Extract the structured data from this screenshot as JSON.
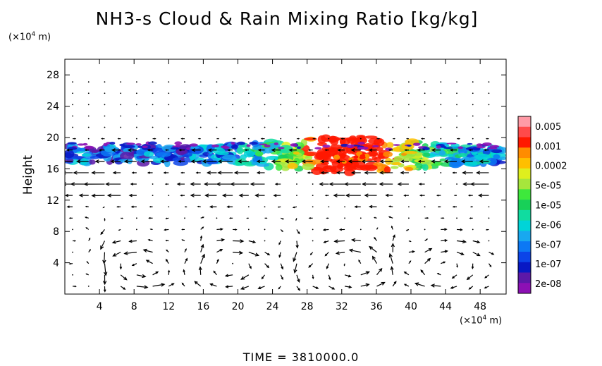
{
  "chart_data": {
    "type": "heatmap",
    "title": "NH3-s Cloud & Rain Mixing Ratio [kg/kg]",
    "ylabel": "Height",
    "y_unit": {
      "prefix": "(×10",
      "exp": "4",
      "suffix": " m)"
    },
    "x_unit": {
      "prefix": "(×10",
      "exp": "4",
      "suffix": " m)"
    },
    "xlim": [
      0,
      51
    ],
    "ylim": [
      0,
      30
    ],
    "x_ticks": [
      "4",
      "8",
      "12",
      "16",
      "20",
      "24",
      "28",
      "32",
      "36",
      "40",
      "44",
      "48"
    ],
    "y_ticks": [
      "4",
      "8",
      "12",
      "16",
      "20",
      "24",
      "28"
    ],
    "colorbar": {
      "labels": [
        "0.005",
        "0.001",
        "0.0002",
        "5e-05",
        "1e-05",
        "2e-06",
        "5e-07",
        "1e-07",
        "2e-08"
      ],
      "colors": [
        "#ff9aa6",
        "#ff4a4a",
        "#ff1800",
        "#ff8c00",
        "#ffbf00",
        "#dfef1e",
        "#a6e63c",
        "#3ee83c",
        "#18d058",
        "#10dca0",
        "#00d4d8",
        "#18a8f0",
        "#0c78f4",
        "#0c44e8",
        "#0818c4",
        "#5c18a8",
        "#8c10b4"
      ]
    },
    "cloud_layer": {
      "x_range": [
        0,
        51
      ],
      "y_range": [
        16,
        19.5
      ]
    },
    "grid": false,
    "vector_field": true
  },
  "footer": {
    "time_label": "TIME = 3810000.0"
  }
}
